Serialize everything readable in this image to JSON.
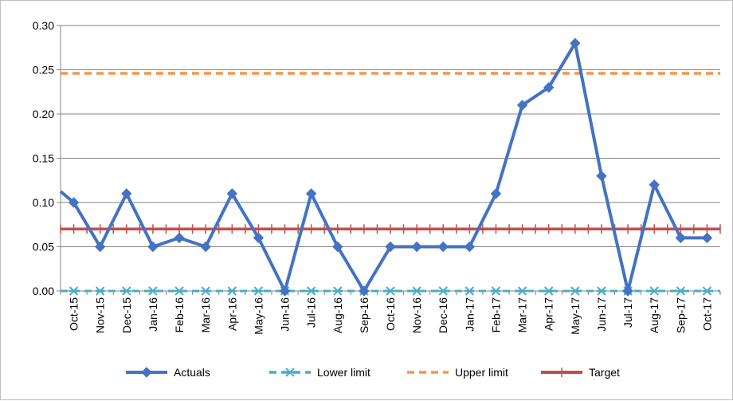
{
  "chart_data": {
    "type": "line",
    "categories": [
      "Oct-15",
      "Nov-15",
      "Dec-15",
      "Jan-16",
      "Feb-16",
      "Mar-16",
      "Apr-16",
      "May-16",
      "Jun-16",
      "Jul-16",
      "Aug-16",
      "Sep-16",
      "Oct-16",
      "Nov-16",
      "Dec-16",
      "Jan-17",
      "Feb-17",
      "Mar-17",
      "Apr-17",
      "May-17",
      "Jun-17",
      "Jul-17",
      "Aug-17",
      "Sep-17",
      "Oct-17"
    ],
    "series": [
      {
        "name": "Actuals",
        "color": "#4472c4",
        "style": "solid-diamond",
        "values": [
          0.1,
          0.05,
          0.11,
          0.05,
          0.06,
          0.05,
          0.11,
          0.06,
          0.0,
          0.11,
          0.05,
          0.0,
          0.05,
          0.05,
          0.05,
          0.05,
          0.11,
          0.21,
          0.23,
          0.28,
          0.13,
          0.0,
          0.12,
          0.06,
          0.06
        ]
      },
      {
        "name": "Lower limit",
        "color": "#4bacc6",
        "style": "dashed-star",
        "values": [
          0,
          0,
          0,
          0,
          0,
          0,
          0,
          0,
          0,
          0,
          0,
          0,
          0,
          0,
          0,
          0,
          0,
          0,
          0,
          0,
          0,
          0,
          0,
          0,
          0
        ]
      },
      {
        "name": "Upper limit",
        "color": "#f79646",
        "style": "dashed",
        "values": [
          0.246,
          0.246,
          0.246,
          0.246,
          0.246,
          0.246,
          0.246,
          0.246,
          0.246,
          0.246,
          0.246,
          0.246,
          0.246,
          0.246,
          0.246,
          0.246,
          0.246,
          0.246,
          0.246,
          0.246,
          0.246,
          0.246,
          0.246,
          0.246,
          0.246
        ]
      },
      {
        "name": "Target",
        "color": "#c0504d",
        "style": "solid-plus",
        "values": [
          0.07,
          0.07,
          0.07,
          0.07,
          0.07,
          0.07,
          0.07,
          0.07,
          0.07,
          0.07,
          0.07,
          0.07,
          0.07,
          0.07,
          0.07,
          0.07,
          0.07,
          0.07,
          0.07,
          0.07,
          0.07,
          0.07,
          0.07,
          0.07,
          0.07
        ]
      }
    ],
    "y_ticks": [
      "0.00",
      "0.05",
      "0.10",
      "0.15",
      "0.20",
      "0.25",
      "0.30"
    ],
    "ylim": [
      0,
      0.3
    ],
    "grid": true,
    "legend_position": "bottom",
    "title": "",
    "xlabel": "",
    "ylabel": ""
  }
}
